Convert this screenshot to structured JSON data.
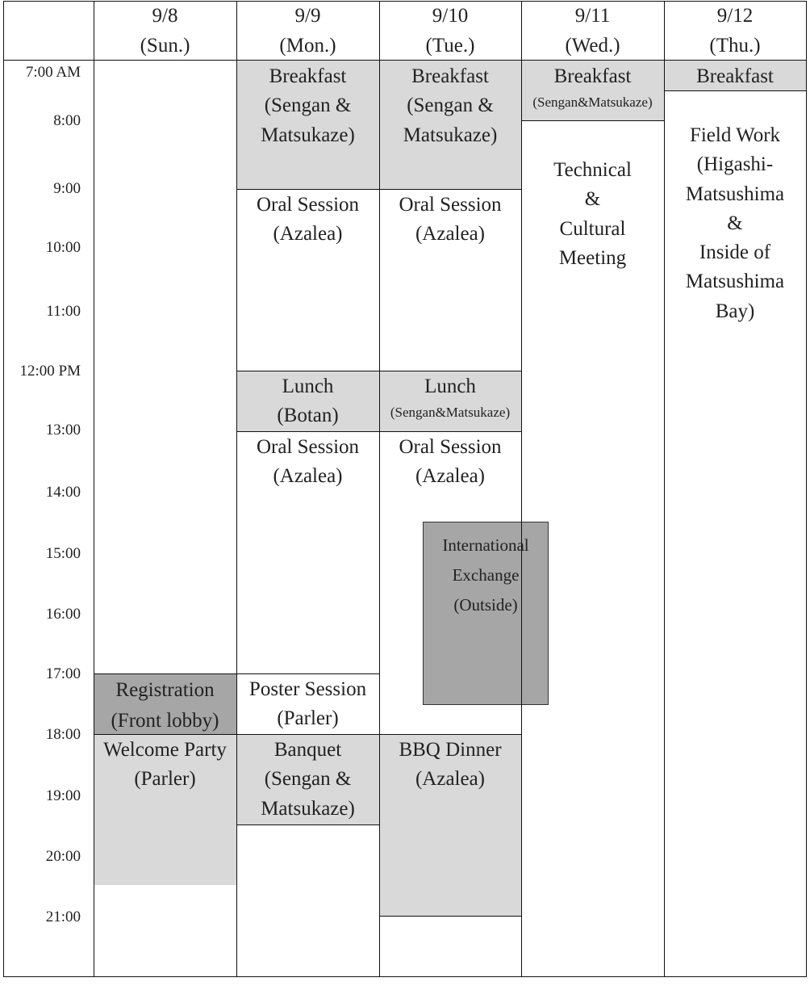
{
  "days": [
    {
      "date": "9/8",
      "weekday": "(Sun.)"
    },
    {
      "date": "9/9",
      "weekday": "(Mon.)"
    },
    {
      "date": "9/10",
      "weekday": "(Tue.)"
    },
    {
      "date": "9/11",
      "weekday": "(Wed.)"
    },
    {
      "date": "9/12",
      "weekday": "(Thu.)"
    }
  ],
  "times": [
    "7:00 AM",
    "8:00",
    "9:00",
    "10:00",
    "11:00",
    "12:00 PM",
    "13:00",
    "14:00",
    "15:00",
    "16:00",
    "17:00",
    "18:00",
    "19:00",
    "20:00",
    "21:00"
  ],
  "events": [
    {
      "id": "registration",
      "text": "Registration\n(Front lobby)",
      "shade": "dark"
    },
    {
      "id": "welcome-party",
      "text": "Welcome Party\n(Parler)",
      "shade": "light"
    },
    {
      "id": "mon-breakfast",
      "text": "Breakfast\n(Sengan &\n   Matsukaze)",
      "shade": "light"
    },
    {
      "id": "mon-oral-am",
      "text": "Oral Session\n(Azalea)",
      "shade": "none"
    },
    {
      "id": "mon-lunch",
      "text": "Lunch\n(Botan)",
      "shade": "light"
    },
    {
      "id": "mon-oral-pm",
      "text": "Oral Session\n(Azalea)",
      "shade": "none"
    },
    {
      "id": "mon-poster",
      "text": "Poster Session\n(Parler)",
      "shade": "none"
    },
    {
      "id": "mon-banquet",
      "text": "Banquet\n(Sengan &\n   Matsukaze)",
      "shade": "light"
    },
    {
      "id": "tue-breakfast",
      "text": "Breakfast\n(Sengan &\n   Matsukaze)",
      "shade": "light"
    },
    {
      "id": "tue-oral-am",
      "text": "Oral Session\n(Azalea)",
      "shade": "none"
    },
    {
      "id": "tue-lunch",
      "text": "Lunch\n(Sengan&Matsukaze)",
      "shade": "light"
    },
    {
      "id": "tue-oral-pm",
      "text": "Oral Session\n(Azalea)",
      "shade": "none"
    },
    {
      "id": "international-exchange",
      "text": "International\nExchange\n(Outside)",
      "shade": "dark"
    },
    {
      "id": "bbq-dinner",
      "text": "BBQ Dinner\n(Azalea)",
      "shade": "light"
    },
    {
      "id": "wed-breakfast",
      "text": "Breakfast\n(Sengan&Matsukaze)",
      "shade": "light"
    },
    {
      "id": "technical-cultural",
      "text": "Technical\n&\nCultural\nMeeting",
      "shade": "none"
    },
    {
      "id": "thu-breakfast",
      "text": "Breakfast",
      "shade": "light"
    },
    {
      "id": "field-work",
      "text": "Field Work\n(Higashi-\nMatsushima\n&\nInside of\nMatsushima\nBay)",
      "shade": "none"
    }
  ]
}
